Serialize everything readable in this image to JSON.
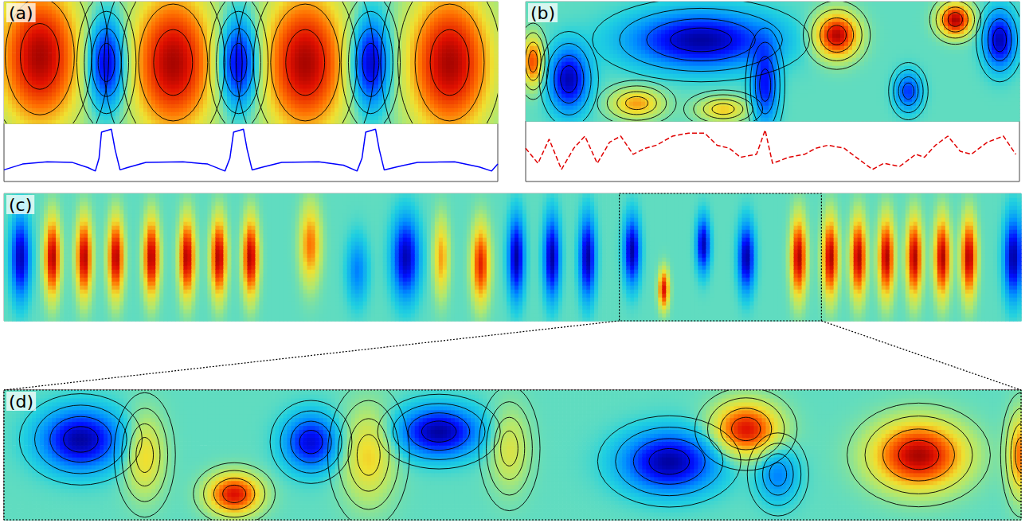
{
  "chart_data": [
    {
      "type": "heatmap",
      "title": "(a)",
      "xlim": [
        0,
        4
      ],
      "ylim": [
        0,
        1
      ],
      "color_range": [
        -1,
        1
      ],
      "tick_labels": false,
      "line_style": "solid",
      "vortices": [
        [
          0.29,
          0.55,
          0.35,
          0.6,
          0.95
        ],
        [
          1.37,
          0.5,
          0.35,
          0.6,
          0.95
        ],
        [
          2.44,
          0.5,
          0.35,
          0.6,
          0.95
        ],
        [
          3.61,
          0.5,
          0.35,
          0.6,
          0.95
        ],
        [
          0.83,
          0.5,
          0.15,
          0.35,
          -0.95
        ],
        [
          1.9,
          0.5,
          0.15,
          0.35,
          -0.95
        ],
        [
          2.97,
          0.5,
          0.15,
          0.35,
          -0.95
        ]
      ],
      "profile": {
        "type": "line",
        "color": "#0000ff",
        "line_style": "solid",
        "ylim": [
          0,
          1
        ],
        "x": [
          0,
          0.15,
          0.35,
          0.55,
          0.68,
          0.74,
          0.77,
          0.79,
          0.87,
          0.9,
          0.94,
          1.0,
          1.15,
          1.45,
          1.65,
          1.79,
          1.83,
          1.86,
          1.94,
          1.97,
          2.01,
          2.1,
          2.25,
          2.55,
          2.75,
          2.86,
          2.9,
          2.93,
          3.01,
          3.04,
          3.08,
          3.18,
          3.35,
          3.65,
          3.85,
          3.95,
          4.0
        ],
        "values": [
          0.2,
          0.3,
          0.34,
          0.33,
          0.24,
          0.18,
          0.4,
          0.85,
          0.9,
          0.55,
          0.2,
          0.24,
          0.33,
          0.34,
          0.3,
          0.18,
          0.4,
          0.85,
          0.9,
          0.55,
          0.2,
          0.25,
          0.33,
          0.34,
          0.28,
          0.18,
          0.4,
          0.85,
          0.9,
          0.55,
          0.2,
          0.25,
          0.33,
          0.34,
          0.25,
          0.18,
          0.3
        ]
      }
    },
    {
      "type": "heatmap",
      "title": "(b)",
      "xlim": [
        0,
        4
      ],
      "ylim": [
        0,
        1
      ],
      "color_range": [
        -1,
        1
      ],
      "tick_labels": false,
      "line_style": "solid",
      "vortices": [
        [
          1.42,
          0.68,
          0.55,
          0.22,
          -0.95
        ],
        [
          0.35,
          0.35,
          0.15,
          0.25,
          -0.9
        ],
        [
          2.52,
          0.72,
          0.17,
          0.18,
          0.95
        ],
        [
          3.48,
          0.85,
          0.13,
          0.13,
          0.95
        ],
        [
          3.84,
          0.68,
          0.12,
          0.22,
          -0.9
        ],
        [
          3.1,
          0.25,
          0.1,
          0.15,
          -0.6
        ],
        [
          1.94,
          0.3,
          0.1,
          0.3,
          -0.7
        ],
        [
          0.06,
          0.5,
          0.08,
          0.2,
          0.7
        ],
        [
          0.9,
          0.15,
          0.2,
          0.12,
          0.5
        ],
        [
          1.6,
          0.1,
          0.2,
          0.1,
          0.4
        ]
      ],
      "profile": {
        "type": "line",
        "color": "#e00000",
        "line_style": "dashed",
        "ylim": [
          0,
          1
        ],
        "x": [
          0,
          0.1,
          0.19,
          0.29,
          0.39,
          0.48,
          0.58,
          0.68,
          0.77,
          0.87,
          0.97,
          1.06,
          1.19,
          1.32,
          1.45,
          1.55,
          1.65,
          1.74,
          1.87,
          1.94,
          2.0,
          2.13,
          2.26,
          2.35,
          2.45,
          2.58,
          2.71,
          2.81,
          2.9,
          3.03,
          3.16,
          3.23,
          3.32,
          3.42,
          3.52,
          3.61,
          3.74,
          3.87,
          3.97
        ],
        "values": [
          0.55,
          0.3,
          0.7,
          0.2,
          0.55,
          0.75,
          0.3,
          0.65,
          0.75,
          0.45,
          0.55,
          0.6,
          0.75,
          0.8,
          0.8,
          0.6,
          0.55,
          0.4,
          0.45,
          0.85,
          0.3,
          0.4,
          0.45,
          0.55,
          0.6,
          0.55,
          0.35,
          0.2,
          0.3,
          0.25,
          0.45,
          0.4,
          0.6,
          0.75,
          0.5,
          0.45,
          0.65,
          0.75,
          0.45
        ]
      }
    },
    {
      "type": "heatmap",
      "title": "(c)",
      "xlim": [
        0,
        8
      ],
      "ylim": [
        0,
        1
      ],
      "color_range": [
        -1,
        1
      ],
      "tick_labels": false,
      "vortices": [
        [
          0.13,
          0.5,
          0.07,
          0.3,
          -0.9
        ],
        [
          0.38,
          0.5,
          0.06,
          0.3,
          0.95
        ],
        [
          0.63,
          0.5,
          0.06,
          0.3,
          0.95
        ],
        [
          0.88,
          0.5,
          0.06,
          0.3,
          0.95
        ],
        [
          1.16,
          0.5,
          0.06,
          0.3,
          0.95
        ],
        [
          1.44,
          0.5,
          0.06,
          0.3,
          0.95
        ],
        [
          1.69,
          0.5,
          0.06,
          0.3,
          0.95
        ],
        [
          1.94,
          0.5,
          0.06,
          0.3,
          0.95
        ],
        [
          2.41,
          0.6,
          0.08,
          0.3,
          0.6
        ],
        [
          2.78,
          0.4,
          0.08,
          0.25,
          -0.4
        ],
        [
          3.16,
          0.5,
          0.1,
          0.3,
          -0.9
        ],
        [
          3.44,
          0.5,
          0.06,
          0.3,
          0.5
        ],
        [
          3.75,
          0.45,
          0.07,
          0.3,
          0.8
        ],
        [
          4.03,
          0.5,
          0.06,
          0.3,
          -0.95
        ],
        [
          4.31,
          0.5,
          0.06,
          0.3,
          -0.95
        ],
        [
          4.59,
          0.5,
          0.06,
          0.3,
          -0.95
        ],
        [
          4.94,
          0.55,
          0.06,
          0.25,
          -0.95
        ],
        [
          5.19,
          0.25,
          0.04,
          0.15,
          0.85
        ],
        [
          5.5,
          0.6,
          0.05,
          0.2,
          -0.9
        ],
        [
          5.84,
          0.5,
          0.06,
          0.25,
          -0.95
        ],
        [
          6.25,
          0.5,
          0.06,
          0.3,
          0.95
        ],
        [
          6.5,
          0.5,
          0.06,
          0.3,
          0.95
        ],
        [
          6.72,
          0.5,
          0.06,
          0.3,
          0.95
        ],
        [
          6.94,
          0.5,
          0.06,
          0.3,
          0.95
        ],
        [
          7.16,
          0.5,
          0.06,
          0.3,
          0.95
        ],
        [
          7.38,
          0.5,
          0.06,
          0.3,
          0.95
        ],
        [
          7.59,
          0.5,
          0.06,
          0.3,
          0.95
        ],
        [
          7.94,
          0.5,
          0.07,
          0.3,
          -0.95
        ]
      ]
    },
    {
      "type": "heatmap",
      "title": "(d)",
      "xlim": [
        4.84,
        6.43
      ],
      "ylim": [
        0,
        1
      ],
      "color_range": [
        -1,
        1
      ],
      "tick_labels": false,
      "line_style": "solid",
      "vortices": [
        [
          4.96,
          0.62,
          0.06,
          0.22,
          -0.95
        ],
        [
          5.06,
          0.5,
          0.03,
          0.3,
          0.4
        ],
        [
          5.2,
          0.2,
          0.04,
          0.15,
          0.85
        ],
        [
          5.32,
          0.6,
          0.04,
          0.2,
          -0.8
        ],
        [
          5.41,
          0.5,
          0.04,
          0.35,
          0.4
        ],
        [
          5.52,
          0.68,
          0.06,
          0.18,
          -0.95
        ],
        [
          5.63,
          0.55,
          0.03,
          0.3,
          0.3
        ],
        [
          5.88,
          0.45,
          0.07,
          0.22,
          -0.95
        ],
        [
          6.0,
          0.7,
          0.05,
          0.2,
          0.85
        ],
        [
          6.05,
          0.35,
          0.03,
          0.2,
          -0.4
        ],
        [
          6.27,
          0.5,
          0.07,
          0.25,
          0.95
        ],
        [
          6.43,
          0.5,
          0.02,
          0.3,
          0.6
        ]
      ]
    }
  ]
}
